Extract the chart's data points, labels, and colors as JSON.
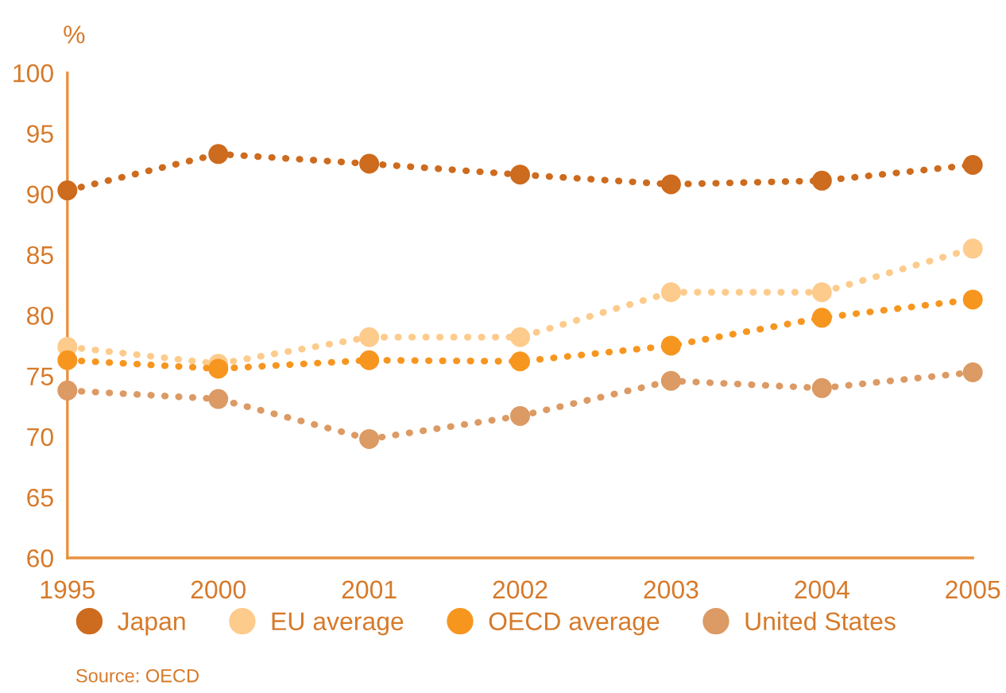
{
  "chart_data": {
    "type": "line",
    "ylabel": "%",
    "categories": [
      "1995",
      "2000",
      "2001",
      "2002",
      "2003",
      "2004",
      "2005"
    ],
    "series": [
      {
        "name": "Japan",
        "color": "#cd6b1e",
        "values": [
          90.3,
          93.3,
          92.5,
          91.6,
          90.8,
          91.1,
          92.4
        ]
      },
      {
        "name": "EU average",
        "color": "#fdcb8c",
        "values": [
          77.4,
          76.0,
          78.2,
          78.2,
          81.9,
          81.9,
          85.5
        ]
      },
      {
        "name": "OECD average",
        "color": "#f7961f",
        "values": [
          76.3,
          75.6,
          76.3,
          76.2,
          77.5,
          79.8,
          81.3
        ]
      },
      {
        "name": "United States",
        "color": "#dc9a64",
        "values": [
          73.8,
          73.1,
          69.8,
          71.7,
          74.6,
          74.0,
          75.3
        ]
      }
    ],
    "ylim": [
      60,
      100
    ],
    "yticks": [
      60,
      65,
      70,
      75,
      80,
      85,
      90,
      95,
      100
    ],
    "grid": false,
    "legend": "bottom",
    "marker": "circle",
    "line_style": "dotted",
    "annotations": [
      "Source: OECD"
    ]
  }
}
